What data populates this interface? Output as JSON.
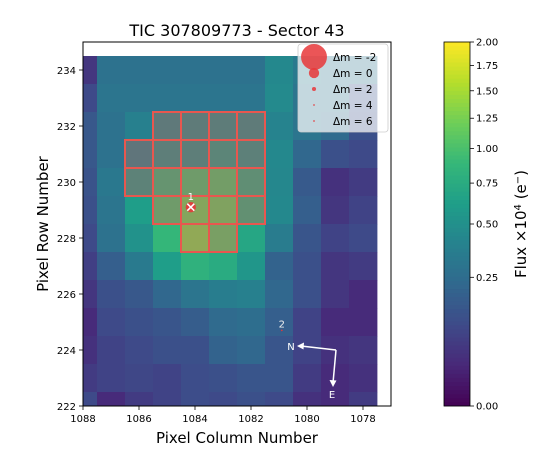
{
  "chart_data": {
    "type": "heatmap",
    "title": "TIC 307809773 - Sector 43",
    "xlabel": "Pixel Column Number",
    "ylabel": "Pixel Row Number",
    "xlim": [
      1088,
      1077
    ],
    "ylim": [
      222,
      235
    ],
    "x_inverted": true,
    "x_ticks": [
      1088,
      1086,
      1084,
      1082,
      1080,
      1078
    ],
    "y_ticks": [
      222,
      224,
      226,
      228,
      230,
      232,
      234
    ],
    "colorbar": {
      "label": "Flux ×10⁴ (e⁻)",
      "colormap": "viridis",
      "scale": "sqrt",
      "vmin": 0.0,
      "vmax": 2.0,
      "ticks": [
        0.0,
        0.25,
        0.5,
        0.75,
        1.0,
        1.25,
        1.5,
        1.75,
        2.0
      ],
      "tick_labels": [
        "0.00",
        "0.25",
        "0.50",
        "0.75",
        "1.00",
        "1.25",
        "1.50",
        "1.75",
        "2.00"
      ]
    },
    "grid_columns": [
      1088,
      1087,
      1086,
      1085,
      1084,
      1083,
      1082,
      1081,
      1080,
      1079,
      1078
    ],
    "grid_rows": [
      234,
      233,
      232,
      231,
      230,
      229,
      228,
      227,
      226,
      225,
      224,
      223,
      222
    ],
    "flux": [
      [
        0.05,
        0.28,
        0.28,
        0.28,
        0.28,
        0.28,
        0.28,
        0.44,
        0.34,
        0.28,
        0.28
      ],
      [
        0.1,
        0.3,
        0.3,
        0.3,
        0.3,
        0.3,
        0.3,
        0.45,
        0.3,
        0.28,
        0.14
      ],
      [
        0.15,
        0.28,
        0.38,
        0.44,
        0.46,
        0.48,
        0.46,
        0.4,
        0.3,
        0.24,
        0.12
      ],
      [
        0.15,
        0.28,
        0.4,
        0.5,
        0.5,
        0.58,
        0.52,
        0.44,
        0.22,
        0.12,
        0.1
      ],
      [
        0.13,
        0.32,
        0.55,
        0.8,
        0.92,
        0.95,
        0.7,
        0.43,
        0.16,
        0.04,
        0.06
      ],
      [
        0.12,
        0.3,
        0.62,
        0.92,
        1.1,
        1.05,
        0.74,
        0.44,
        0.18,
        0.05,
        0.08
      ],
      [
        0.1,
        0.28,
        0.52,
        0.88,
        1.2,
        1.0,
        0.7,
        0.35,
        0.14,
        0.08,
        0.1
      ],
      [
        0.07,
        0.18,
        0.34,
        0.62,
        0.82,
        0.75,
        0.55,
        0.2,
        0.12,
        0.05,
        0.06
      ],
      [
        0.05,
        0.12,
        0.15,
        0.22,
        0.3,
        0.36,
        0.38,
        0.22,
        0.12,
        0.05,
        0.03
      ],
      [
        0.03,
        0.1,
        0.12,
        0.14,
        0.17,
        0.24,
        0.26,
        0.18,
        0.08,
        0.03,
        0.03
      ],
      [
        0.04,
        0.08,
        0.1,
        0.12,
        0.12,
        0.2,
        0.22,
        0.14,
        0.08,
        0.04,
        0.05
      ],
      [
        0.06,
        0.08,
        0.09,
        0.08,
        0.11,
        0.12,
        0.14,
        0.14,
        0.06,
        0.03,
        0.04
      ],
      [
        0.1,
        0.03,
        0.06,
        0.08,
        0.11,
        0.1,
        0.12,
        0.1,
        0.04,
        0.03,
        0.06
      ]
    ],
    "aperture_pixels": [
      [
        1085,
        232
      ],
      [
        1084,
        232
      ],
      [
        1083,
        232
      ],
      [
        1082,
        232
      ],
      [
        1086,
        231
      ],
      [
        1085,
        231
      ],
      [
        1084,
        231
      ],
      [
        1083,
        231
      ],
      [
        1082,
        231
      ],
      [
        1086,
        230
      ],
      [
        1085,
        230
      ],
      [
        1084,
        230
      ],
      [
        1083,
        230
      ],
      [
        1082,
        230
      ],
      [
        1085,
        229
      ],
      [
        1084,
        229
      ],
      [
        1083,
        229
      ],
      [
        1082,
        229
      ],
      [
        1084,
        228
      ],
      [
        1083,
        228
      ]
    ],
    "aperture_color": "#e8574f",
    "sources": [
      {
        "label": "1",
        "x": 1084.15,
        "y": 229.1,
        "dm": 0,
        "target": true
      },
      {
        "label": "2",
        "x": 1080.9,
        "y": 224.7,
        "dm": 4,
        "target": false
      }
    ],
    "source_color": "#e8373a",
    "legend": {
      "placement": "top-right",
      "entries": [
        {
          "label": "Δm =  -2",
          "dm": -2
        },
        {
          "label": "Δm =  0",
          "dm": 0
        },
        {
          "label": "Δm =  2",
          "dm": 2
        },
        {
          "label": "Δm =  4",
          "dm": 4
        },
        {
          "label": "Δm =  6",
          "dm": 6
        }
      ]
    },
    "compass": {
      "north_label": "N",
      "east_label": "E",
      "color": "#ffffff"
    }
  }
}
